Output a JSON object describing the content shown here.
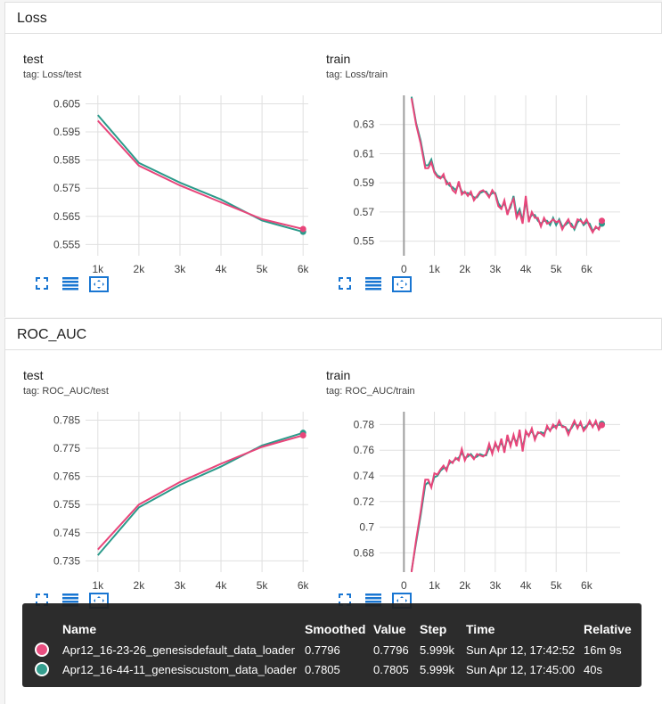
{
  "sections": [
    {
      "title": "Loss"
    },
    {
      "title": "ROC_AUC"
    }
  ],
  "colors": {
    "run1": "#e8457a",
    "run2": "#2b9a8a",
    "axis": "#9e9e9e",
    "grid": "#e0e0e0",
    "icon": "#1976d2"
  },
  "cards": [
    {
      "title": "test",
      "tag": "tag: Loss/test"
    },
    {
      "title": "train",
      "tag": "tag: Loss/train"
    },
    {
      "title": "test",
      "tag": "tag: ROC_AUC/test"
    },
    {
      "title": "train",
      "tag": "tag: ROC_AUC/train"
    }
  ],
  "chart_data": [
    {
      "type": "line",
      "title": "test",
      "xlim": [
        700,
        6300
      ],
      "ylim": [
        0.551,
        0.608
      ],
      "xticks": [
        1000,
        2000,
        3000,
        4000,
        5000,
        6000
      ],
      "xtick_labels": [
        "1k",
        "2k",
        "3k",
        "4k",
        "5k",
        "6k"
      ],
      "yticks": [
        0.605,
        0.595,
        0.585,
        0.575,
        0.565,
        0.555
      ],
      "ytick_labels": [
        "0.605",
        "0.595",
        "0.585",
        "0.575",
        "0.565",
        "0.555"
      ],
      "series": [
        {
          "name": "Apr12_16-23-26_genesisdefault_data_loader",
          "x": [
            1000,
            2000,
            3000,
            4000,
            5000,
            6000
          ],
          "y": [
            0.599,
            0.583,
            0.576,
            0.57,
            0.564,
            0.5605
          ]
        },
        {
          "name": "Apr12_16-44-11_genesiscustom_data_loader",
          "x": [
            1000,
            2000,
            3000,
            4000,
            5000,
            6000
          ],
          "y": [
            0.601,
            0.584,
            0.577,
            0.571,
            0.5635,
            0.5595
          ]
        }
      ]
    },
    {
      "type": "line",
      "title": "train",
      "xlim": [
        -800,
        7100
      ],
      "ylim": [
        0.54,
        0.65
      ],
      "xticks": [
        0,
        1000,
        2000,
        3000,
        4000,
        5000,
        6000
      ],
      "xtick_labels": [
        "0",
        "1k",
        "2k",
        "3k",
        "4k",
        "5k",
        "6k"
      ],
      "yticks": [
        0.63,
        0.61,
        0.59,
        0.57,
        0.55
      ],
      "ytick_labels": [
        "0.63",
        "0.61",
        "0.59",
        "0.57",
        "0.55"
      ],
      "series": [
        {
          "name": "Apr12_16-23-26_genesisdefault_data_loader",
          "x": [
            250,
            400,
            550,
            700,
            800,
            900,
            1000,
            1100,
            1200,
            1300,
            1400,
            1500,
            1600,
            1700,
            1800,
            1900,
            2000,
            2100,
            2200,
            2300,
            2400,
            2500,
            2600,
            2700,
            2800,
            2900,
            3000,
            3100,
            3200,
            3300,
            3400,
            3500,
            3600,
            3700,
            3800,
            3900,
            4000,
            4100,
            4200,
            4300,
            4400,
            4500,
            4600,
            4700,
            4800,
            4900,
            5000,
            5100,
            5200,
            5300,
            5400,
            5500,
            5600,
            5700,
            5800,
            5900,
            6000,
            6100,
            6200,
            6300,
            6400,
            6500
          ],
          "y": [
            0.648,
            0.63,
            0.617,
            0.6,
            0.6,
            0.604,
            0.597,
            0.594,
            0.593,
            0.596,
            0.589,
            0.59,
            0.585,
            0.583,
            0.591,
            0.582,
            0.584,
            0.581,
            0.584,
            0.578,
            0.581,
            0.584,
            0.585,
            0.583,
            0.58,
            0.585,
            0.582,
            0.574,
            0.572,
            0.578,
            0.568,
            0.575,
            0.579,
            0.566,
            0.57,
            0.562,
            0.581,
            0.563,
            0.57,
            0.566,
            0.566,
            0.56,
            0.566,
            0.562,
            0.563,
            0.565,
            0.563,
            0.564,
            0.558,
            0.562,
            0.565,
            0.56,
            0.559,
            0.565,
            0.564,
            0.562,
            0.565,
            0.56,
            0.556,
            0.56,
            0.558,
            0.564
          ]
        },
        {
          "name": "Apr12_16-44-11_genesiscustom_data_loader",
          "x": [
            250,
            400,
            550,
            700,
            800,
            900,
            1000,
            1100,
            1200,
            1300,
            1400,
            1500,
            1600,
            1700,
            1800,
            1900,
            2000,
            2100,
            2200,
            2300,
            2400,
            2500,
            2600,
            2700,
            2800,
            2900,
            3000,
            3100,
            3200,
            3300,
            3400,
            3500,
            3600,
            3700,
            3800,
            3900,
            4000,
            4100,
            4200,
            4300,
            4400,
            4500,
            4600,
            4700,
            4800,
            4900,
            5000,
            5100,
            5200,
            5300,
            5400,
            5500,
            5600,
            5700,
            5800,
            5900,
            6000,
            6100,
            6200,
            6300,
            6400,
            6500
          ],
          "y": [
            0.649,
            0.631,
            0.619,
            0.602,
            0.602,
            0.606,
            0.598,
            0.595,
            0.594,
            0.594,
            0.591,
            0.588,
            0.587,
            0.585,
            0.589,
            0.584,
            0.583,
            0.583,
            0.582,
            0.58,
            0.58,
            0.583,
            0.584,
            0.584,
            0.581,
            0.583,
            0.583,
            0.576,
            0.573,
            0.576,
            0.57,
            0.573,
            0.581,
            0.568,
            0.572,
            0.564,
            0.578,
            0.565,
            0.568,
            0.568,
            0.564,
            0.562,
            0.564,
            0.564,
            0.561,
            0.566,
            0.561,
            0.565,
            0.56,
            0.561,
            0.563,
            0.562,
            0.558,
            0.563,
            0.565,
            0.561,
            0.563,
            0.562,
            0.557,
            0.559,
            0.559,
            0.562
          ]
        }
      ]
    },
    {
      "type": "line",
      "title": "test",
      "xlim": [
        700,
        6300
      ],
      "ylim": [
        0.731,
        0.788
      ],
      "xticks": [
        1000,
        2000,
        3000,
        4000,
        5000,
        6000
      ],
      "xtick_labels": [
        "1k",
        "2k",
        "3k",
        "4k",
        "5k",
        "6k"
      ],
      "yticks": [
        0.785,
        0.775,
        0.765,
        0.755,
        0.745,
        0.735
      ],
      "ytick_labels": [
        "0.785",
        "0.775",
        "0.765",
        "0.755",
        "0.745",
        "0.735"
      ],
      "series": [
        {
          "name": "Apr12_16-23-26_genesisdefault_data_loader",
          "x": [
            1000,
            2000,
            3000,
            4000,
            5000,
            6000
          ],
          "y": [
            0.739,
            0.755,
            0.763,
            0.7695,
            0.7755,
            0.7796
          ]
        },
        {
          "name": "Apr12_16-44-11_genesiscustom_data_loader",
          "x": [
            1000,
            2000,
            3000,
            4000,
            5000,
            6000
          ],
          "y": [
            0.737,
            0.754,
            0.762,
            0.7685,
            0.776,
            0.7805
          ]
        }
      ]
    },
    {
      "type": "line",
      "title": "train",
      "xlim": [
        -800,
        7100
      ],
      "ylim": [
        0.665,
        0.79
      ],
      "xticks": [
        0,
        1000,
        2000,
        3000,
        4000,
        5000,
        6000
      ],
      "xtick_labels": [
        "0",
        "1k",
        "2k",
        "3k",
        "4k",
        "5k",
        "6k"
      ],
      "yticks": [
        0.78,
        0.76,
        0.74,
        0.72,
        0.7,
        0.68
      ],
      "ytick_labels": [
        "0.78",
        "0.76",
        "0.74",
        "0.72",
        "0.7",
        "0.68"
      ],
      "series": [
        {
          "name": "Apr12_16-23-26_genesisdefault_data_loader",
          "x": [
            250,
            400,
            550,
            700,
            800,
            900,
            1000,
            1100,
            1200,
            1300,
            1400,
            1500,
            1600,
            1700,
            1800,
            1900,
            2000,
            2100,
            2200,
            2300,
            2400,
            2500,
            2600,
            2700,
            2800,
            2900,
            3000,
            3100,
            3200,
            3300,
            3400,
            3500,
            3600,
            3700,
            3800,
            3900,
            4000,
            4100,
            4200,
            4300,
            4400,
            4500,
            4600,
            4700,
            4800,
            4900,
            5000,
            5100,
            5200,
            5300,
            5400,
            5500,
            5600,
            5700,
            5800,
            5900,
            6000,
            6100,
            6200,
            6300,
            6400,
            6500
          ],
          "y": [
            0.665,
            0.69,
            0.712,
            0.737,
            0.737,
            0.731,
            0.742,
            0.741,
            0.745,
            0.748,
            0.744,
            0.752,
            0.75,
            0.754,
            0.752,
            0.761,
            0.752,
            0.757,
            0.756,
            0.753,
            0.757,
            0.756,
            0.755,
            0.757,
            0.765,
            0.757,
            0.766,
            0.76,
            0.769,
            0.758,
            0.772,
            0.763,
            0.772,
            0.763,
            0.776,
            0.759,
            0.775,
            0.771,
            0.777,
            0.768,
            0.774,
            0.773,
            0.771,
            0.779,
            0.775,
            0.78,
            0.777,
            0.783,
            0.778,
            0.778,
            0.772,
            0.778,
            0.783,
            0.777,
            0.782,
            0.775,
            0.778,
            0.783,
            0.778,
            0.783,
            0.776,
            0.7796
          ]
        },
        {
          "name": "Apr12_16-44-11_genesiscustom_data_loader",
          "x": [
            250,
            400,
            550,
            700,
            800,
            900,
            1000,
            1100,
            1200,
            1300,
            1400,
            1500,
            1600,
            1700,
            1800,
            1900,
            2000,
            2100,
            2200,
            2300,
            2400,
            2500,
            2600,
            2700,
            2800,
            2900,
            3000,
            3100,
            3200,
            3300,
            3400,
            3500,
            3600,
            3700,
            3800,
            3900,
            4000,
            4100,
            4200,
            4300,
            4400,
            4500,
            4600,
            4700,
            4800,
            4900,
            5000,
            5100,
            5200,
            5300,
            5400,
            5500,
            5600,
            5700,
            5800,
            5900,
            6000,
            6100,
            6200,
            6300,
            6400,
            6500
          ],
          "y": [
            0.666,
            0.688,
            0.709,
            0.733,
            0.735,
            0.732,
            0.739,
            0.74,
            0.744,
            0.746,
            0.746,
            0.75,
            0.751,
            0.753,
            0.754,
            0.758,
            0.754,
            0.755,
            0.757,
            0.754,
            0.755,
            0.757,
            0.756,
            0.756,
            0.762,
            0.759,
            0.764,
            0.762,
            0.766,
            0.761,
            0.769,
            0.765,
            0.77,
            0.766,
            0.773,
            0.762,
            0.773,
            0.772,
            0.775,
            0.77,
            0.773,
            0.774,
            0.773,
            0.777,
            0.776,
            0.778,
            0.779,
            0.78,
            0.779,
            0.778,
            0.775,
            0.777,
            0.781,
            0.779,
            0.78,
            0.777,
            0.779,
            0.781,
            0.779,
            0.781,
            0.778,
            0.7805
          ]
        }
      ]
    }
  ],
  "tooltip": {
    "headers": {
      "name": "Name",
      "smoothed": "Smoothed",
      "value": "Value",
      "step": "Step",
      "time": "Time",
      "relative": "Relative"
    },
    "rows": [
      {
        "name": "Apr12_16-23-26_genesisdefault_data_loader",
        "smoothed": "0.7796",
        "value": "0.7796",
        "step": "5.999k",
        "time": "Sun Apr 12, 17:42:52",
        "relative": "16m 9s",
        "color": "#e8457a"
      },
      {
        "name": "Apr12_16-44-11_genesiscustom_data_loader",
        "smoothed": "0.7805",
        "value": "0.7805",
        "step": "5.999k",
        "time": "Sun Apr 12, 17:45:00",
        "relative": "40s",
        "color": "#2b9a8a"
      }
    ]
  }
}
